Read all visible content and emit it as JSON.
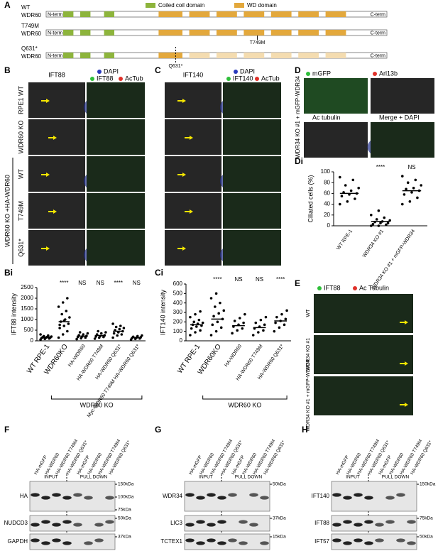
{
  "panel_labels": [
    "A",
    "B",
    "C",
    "D",
    "Di",
    "Bi",
    "Ci",
    "E",
    "F",
    "G",
    "H"
  ],
  "panel_A": {
    "legend": [
      "Coiled coil domain",
      "WD domain"
    ],
    "rows": [
      [
        "WT",
        "WDR60"
      ],
      [
        "T749M",
        "WDR60"
      ],
      [
        "Q631*",
        "WDR60"
      ]
    ],
    "ends": [
      "N-term",
      "C-term"
    ],
    "mutation_labels": [
      "T749M",
      "Q631*"
    ]
  },
  "panel_B": {
    "headers": [
      "IFT88",
      "DAPI",
      "IFT88",
      "AcTub"
    ],
    "rows": [
      "RPE1 WT",
      "WDR60 KO",
      "WT",
      "T749M",
      "Q631*"
    ],
    "group": "WDR60 KO +HA-WDR60"
  },
  "panel_C": {
    "headers": [
      "IFT140",
      "DAPI",
      "IFT140",
      "AcTub"
    ]
  },
  "panel_D": {
    "headers": [
      "mGFP",
      "Arl13b",
      "Ac tubulin",
      "Merge + DAPI"
    ],
    "side": "WDR34 KO #1 + mGFP-WDR34"
  },
  "panel_E": {
    "headers": [
      "IFT88",
      "Ac Tubulin"
    ],
    "rows": [
      "WT",
      "WDR34 KO #1",
      "WDR34 KO #1 + mGFP-WDR34"
    ]
  },
  "chart_data": [
    {
      "type": "strip",
      "ylabel": "IFT88 intensity",
      "ylim": [
        0,
        2500
      ],
      "yticks": [
        0,
        500,
        1000,
        1500,
        2000,
        2500
      ],
      "color": "#000000",
      "categories": [
        "WT RPE-1",
        "WDR60KO",
        "HA-WDR60",
        "HA-WDR60 T749M",
        "HA-WDR60 Q631*",
        "Myc-WDR60 T749M HA-WDR60 Q631*"
      ],
      "significance": [
        null,
        "****",
        "NS",
        "NS",
        "****",
        "NS"
      ],
      "group_label": "WDR60 KO",
      "values": [
        [
          60,
          90,
          110,
          130,
          150,
          160,
          170,
          180,
          200,
          220,
          250,
          300,
          120,
          140
        ],
        [
          150,
          300,
          450,
          600,
          700,
          800,
          900,
          1000,
          1100,
          1250,
          1400,
          1600,
          1800,
          2000,
          750,
          950
        ],
        [
          80,
          120,
          150,
          180,
          200,
          230,
          260,
          300,
          350,
          400
        ],
        [
          100,
          150,
          180,
          200,
          220,
          260,
          300,
          350,
          400,
          450
        ],
        [
          150,
          250,
          300,
          350,
          400,
          450,
          500,
          550,
          600,
          650,
          700,
          800
        ],
        [
          60,
          90,
          110,
          130,
          150,
          170,
          190,
          220,
          250
        ]
      ],
      "means": [
        150,
        900,
        220,
        250,
        450,
        150
      ]
    },
    {
      "type": "strip",
      "ylabel": "IFT140 intensity",
      "ylim": [
        0,
        600
      ],
      "yticks": [
        0,
        100,
        200,
        300,
        400,
        500,
        600
      ],
      "color": "#000000",
      "categories": [
        "WT RPE-1",
        "WDR60KO",
        "HA-WDR60",
        "HA-WDR60 T749M",
        "HA-WDR60 Q631*"
      ],
      "significance": [
        null,
        "****",
        "NS",
        "NS",
        "****"
      ],
      "group_label": "WDR60 KO",
      "values": [
        [
          60,
          90,
          110,
          130,
          150,
          160,
          170,
          180,
          190,
          200,
          220,
          250,
          280,
          310
        ],
        [
          60,
          100,
          140,
          170,
          200,
          230,
          260,
          290,
          320,
          360,
          400,
          450,
          500
        ],
        [
          80,
          110,
          130,
          150,
          170,
          190,
          210,
          240,
          280
        ],
        [
          60,
          90,
          110,
          130,
          150,
          170,
          190,
          220,
          250
        ],
        [
          100,
          140,
          170,
          190,
          210,
          230,
          250,
          280,
          320
        ]
      ],
      "means": [
        170,
        230,
        160,
        140,
        210
      ]
    },
    {
      "type": "strip",
      "ylabel": "Ciliated cells (%)",
      "ylim": [
        0,
        100
      ],
      "yticks": [
        0,
        20,
        40,
        60,
        80,
        100
      ],
      "color": "#000000",
      "categories": [
        "WT RPE-1",
        "WDR34 KO #1",
        "WDR34 KO #1 + mGFP-WDR34"
      ],
      "significance": [
        null,
        "****",
        "NS"
      ],
      "values": [
        [
          40,
          45,
          50,
          55,
          58,
          60,
          62,
          65,
          70,
          75,
          85,
          90
        ],
        [
          0,
          0,
          2,
          3,
          5,
          5,
          7,
          8,
          10,
          12,
          15,
          20,
          28
        ],
        [
          40,
          45,
          52,
          58,
          62,
          65,
          68,
          70,
          75,
          80,
          85,
          92
        ]
      ],
      "means": [
        60,
        8,
        65
      ]
    }
  ],
  "blots": [
    {
      "lanes": [
        "HA-mGFP",
        "HA-WDR60",
        "HA-WDR60 T749M",
        "HA-WDR60 Q631*",
        "HA-mGFP",
        "HA-WDR60",
        "HA-WDR60 T749M",
        "HA-WDR60 Q631*"
      ],
      "groups": [
        "INPUT",
        "PULL DOWN"
      ],
      "rows": [
        {
          "label": "HA",
          "markers": [
            "150kDa",
            "100kDa",
            "75kDa"
          ]
        },
        {
          "label": "NUDCD3",
          "markers": [
            "50kDa"
          ]
        },
        {
          "label": "GAPDH",
          "markers": [
            "37kDa"
          ]
        }
      ]
    },
    {
      "lanes": [
        "HA-mGFP",
        "HA-WDR60",
        "HA-WDR60 T749M",
        "HA-WDR60 Q631*",
        "HA-mGFP",
        "HA-WDR60",
        "HA-WDR60 T749M",
        "HA-WDR60 Q631*"
      ],
      "groups": [
        "INPUT",
        "PULL DOWN"
      ],
      "rows": [
        {
          "label": "WDR34",
          "markers": [
            "50kDa"
          ]
        },
        {
          "label": "LIC3",
          "markers": [
            "37kDa"
          ]
        },
        {
          "label": "TCTEX1",
          "markers": [
            "15kDa"
          ]
        }
      ]
    },
    {
      "lanes": [
        "HA-mGFP",
        "HA-WDR60",
        "HA-WDR60 T749M",
        "HA-WDR60 Q631*",
        "HA-mGFP",
        "HA-WDR60",
        "HA-WDR60 T749M",
        "HA-WDR60 Q631*"
      ],
      "groups": [
        "INPUT",
        "PULL DOWN"
      ],
      "rows": [
        {
          "label": "IFT140",
          "markers": [
            "150kDa"
          ]
        },
        {
          "label": "IFT88",
          "markers": [
            "75kDa"
          ]
        },
        {
          "label": "IFT57",
          "markers": [
            "50kDa"
          ]
        }
      ]
    }
  ]
}
